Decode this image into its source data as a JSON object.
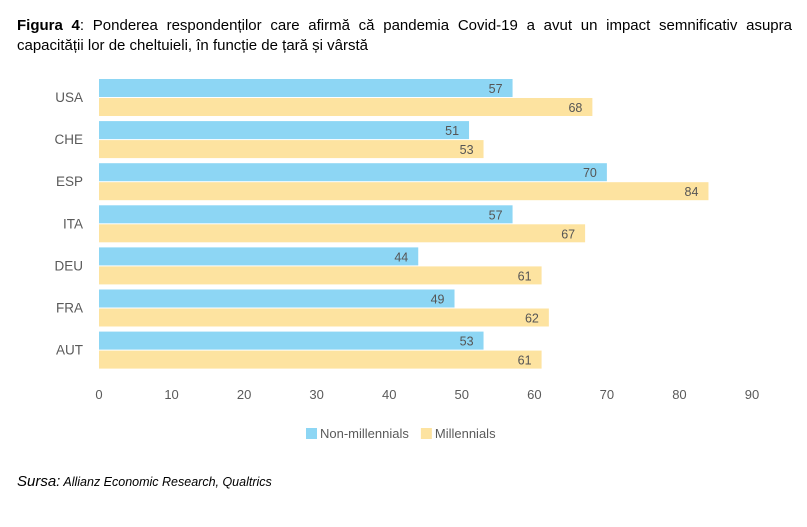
{
  "caption": {
    "label": "Figura 4",
    "text": ": Ponderea respondenților care afirmă că pandemia Covid-19 a avut un impact semnificativ asupra capacității lor de cheltuieli, în funcție de țară și vârstă"
  },
  "source": {
    "label": "Sursa:",
    "text": " Allianz Economic Research, Qualtrics"
  },
  "chart_data": {
    "type": "bar",
    "orientation": "horizontal",
    "categories": [
      "USA",
      "CHE",
      "ESP",
      "ITA",
      "DEU",
      "FRA",
      "AUT"
    ],
    "series": [
      {
        "name": "Non-millennials",
        "color": "#8dd6f4",
        "values": [
          57,
          51,
          70,
          57,
          44,
          49,
          53
        ]
      },
      {
        "name": "Millennials",
        "color": "#fde3a0",
        "values": [
          68,
          53,
          84,
          67,
          61,
          62,
          61
        ]
      }
    ],
    "xlim": [
      0,
      90
    ],
    "xticks": [
      0,
      10,
      20,
      30,
      40,
      50,
      60,
      70,
      80,
      90
    ],
    "grid": false,
    "legend": "bottom"
  }
}
